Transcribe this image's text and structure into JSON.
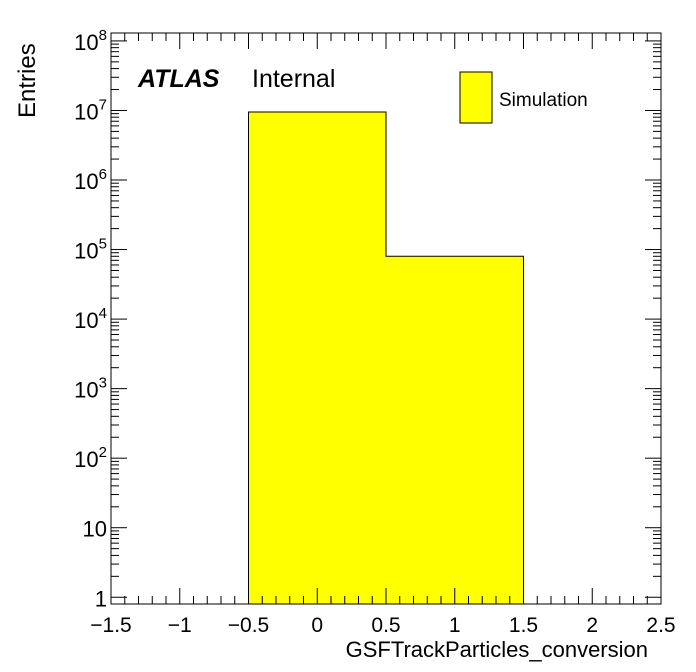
{
  "chart_data": {
    "type": "bar",
    "subtype": "histogram",
    "x": {
      "label": "GSFTrackParticles_conversion",
      "range": [
        -1.5,
        2.5
      ],
      "tick_labels": [
        "−1.5",
        "−1",
        "−0.5",
        "0",
        "0.5",
        "1",
        "1.5",
        "2",
        "2.5"
      ],
      "tick_values": [
        -1.5,
        -1,
        -0.5,
        0,
        0.5,
        1,
        1.5,
        2,
        2.5
      ]
    },
    "y": {
      "label": "Entries",
      "scale": "log",
      "range": [
        0.8,
        130000000
      ],
      "tick_values": [
        1,
        10,
        100,
        1000,
        10000,
        100000,
        1000000,
        10000000,
        100000000
      ],
      "tick_labels": [
        {
          "base": "1",
          "exp": ""
        },
        {
          "base": "10",
          "exp": ""
        },
        {
          "base": "10",
          "exp": "2"
        },
        {
          "base": "10",
          "exp": "3"
        },
        {
          "base": "10",
          "exp": "4"
        },
        {
          "base": "10",
          "exp": "5"
        },
        {
          "base": "10",
          "exp": "6"
        },
        {
          "base": "10",
          "exp": "7"
        },
        {
          "base": "10",
          "exp": "8"
        }
      ]
    },
    "bins": [
      {
        "low": -0.5,
        "high": 0.5,
        "value": 9500000
      },
      {
        "low": 0.5,
        "high": 1.5,
        "value": 80000
      }
    ],
    "series": [
      {
        "name": "Simulation",
        "color": "#ffff00"
      }
    ],
    "legend": {
      "position": "top-right",
      "entries": [
        "Simulation"
      ]
    },
    "label": {
      "bold": "ATLAS",
      "text": "Internal"
    },
    "grid": false,
    "fill_color": "#ffff00",
    "line_color": "#000000"
  }
}
